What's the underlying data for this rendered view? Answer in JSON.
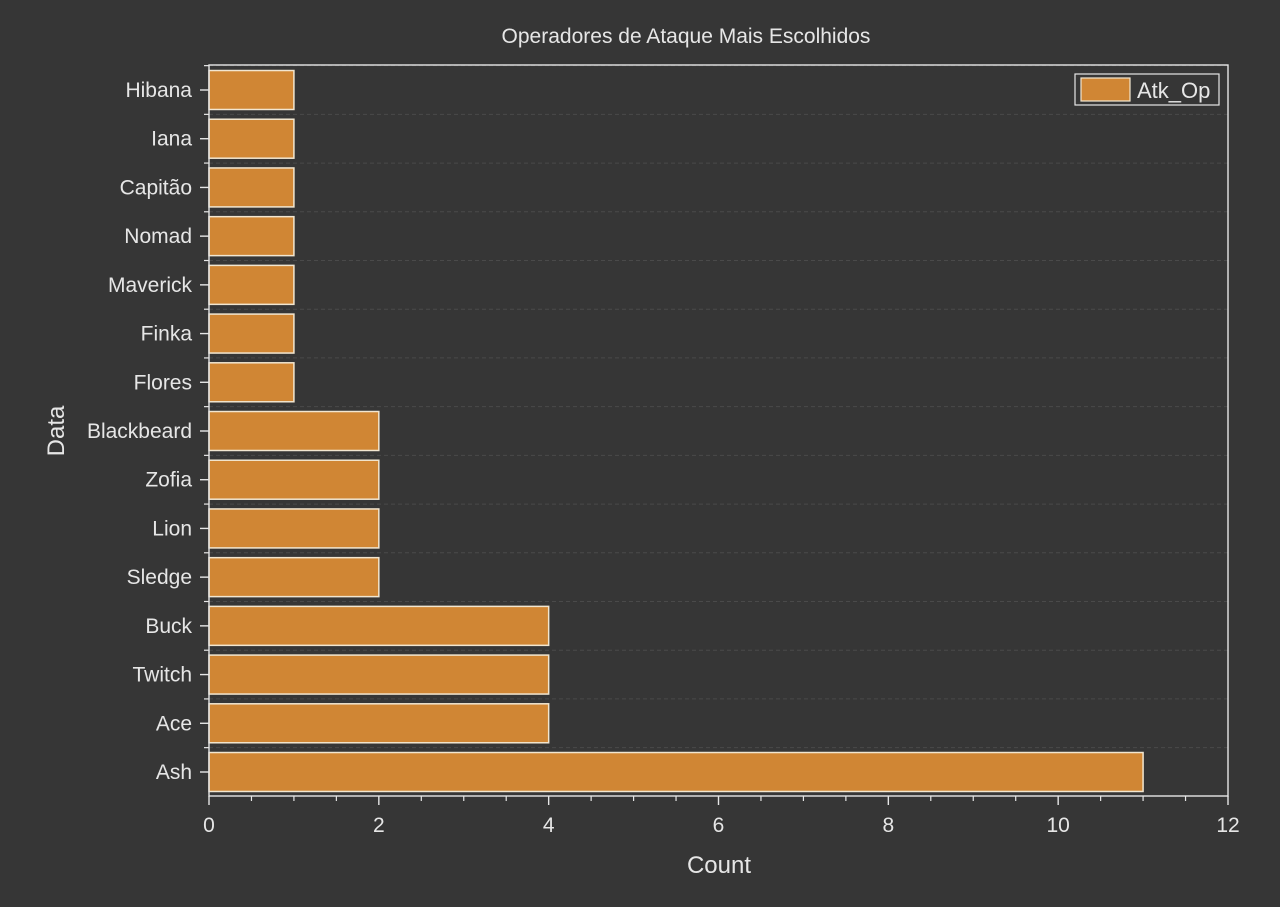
{
  "chart_data": {
    "type": "bar",
    "orientation": "horizontal",
    "title": "Operadores de Ataque Mais Escolhidos",
    "xlabel": "Count",
    "ylabel": "Data",
    "xlim": [
      0,
      12
    ],
    "xticks": [
      0,
      2,
      4,
      6,
      8,
      10,
      12
    ],
    "x_tick_labels": [
      "0",
      "2",
      "4",
      "6",
      "8",
      "10",
      "12"
    ],
    "grid": true,
    "legend_position": "top-right",
    "categories": [
      "Ash",
      "Ace",
      "Twitch",
      "Buck",
      "Sledge",
      "Lion",
      "Zofia",
      "Blackbeard",
      "Flores",
      "Finka",
      "Maverick",
      "Nomad",
      "Capitão",
      "Iana",
      "Hibana"
    ],
    "series": [
      {
        "name": "Atk_Op",
        "values": [
          11,
          4,
          4,
          4,
          2,
          2,
          2,
          2,
          1,
          1,
          1,
          1,
          1,
          1,
          1
        ],
        "color": "#d08634"
      }
    ]
  },
  "colors": {
    "background": "#363636",
    "axis": "#e6e6e6",
    "bar_fill": "#d08634",
    "bar_edge": "#f2e6d0",
    "grid": "#4a4a4a"
  }
}
